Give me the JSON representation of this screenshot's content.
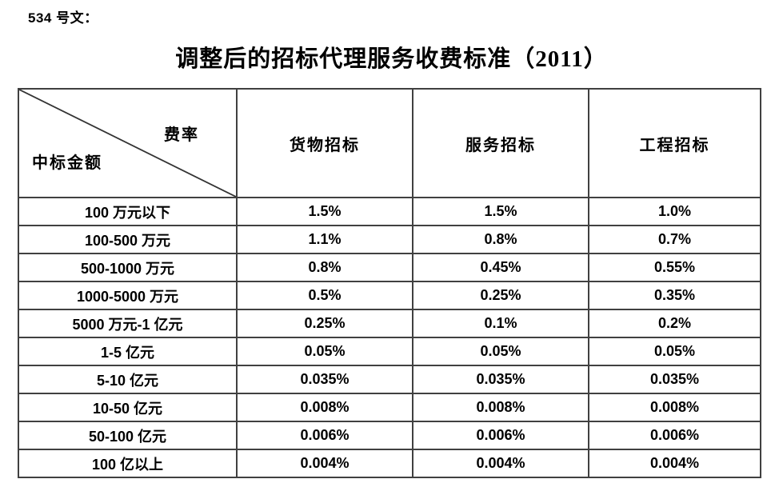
{
  "document": {
    "doc_number": "534 号文：",
    "title": "调整后的招标代理服务收费标准（2011）"
  },
  "table": {
    "corner": {
      "top_right_label": "费率",
      "bottom_left_label": "中标金额"
    },
    "columns": [
      "货物招标",
      "服务招标",
      "工程招标"
    ],
    "rows": [
      {
        "amount": "100 万元以下",
        "values": [
          "1.5%",
          "1.5%",
          "1.0%"
        ]
      },
      {
        "amount": "100-500 万元",
        "values": [
          "1.1%",
          "0.8%",
          "0.7%"
        ]
      },
      {
        "amount": "500-1000 万元",
        "values": [
          "0.8%",
          "0.45%",
          "0.55%"
        ]
      },
      {
        "amount": "1000-5000 万元",
        "values": [
          "0.5%",
          "0.25%",
          "0.35%"
        ]
      },
      {
        "amount": "5000 万元-1 亿元",
        "values": [
          "0.25%",
          "0.1%",
          "0.2%"
        ]
      },
      {
        "amount": "1-5 亿元",
        "values": [
          "0.05%",
          "0.05%",
          "0.05%"
        ]
      },
      {
        "amount": "5-10 亿元",
        "values": [
          "0.035%",
          "0.035%",
          "0.035%"
        ]
      },
      {
        "amount": "10-50 亿元",
        "values": [
          "0.008%",
          "0.008%",
          "0.008%"
        ]
      },
      {
        "amount": "50-100 亿元",
        "values": [
          "0.006%",
          "0.006%",
          "0.006%"
        ]
      },
      {
        "amount": "100 亿以上",
        "values": [
          "0.004%",
          "0.004%",
          "0.004%"
        ]
      }
    ]
  },
  "colors": {
    "text": "#000000",
    "border": "#404040",
    "background": "#ffffff"
  }
}
